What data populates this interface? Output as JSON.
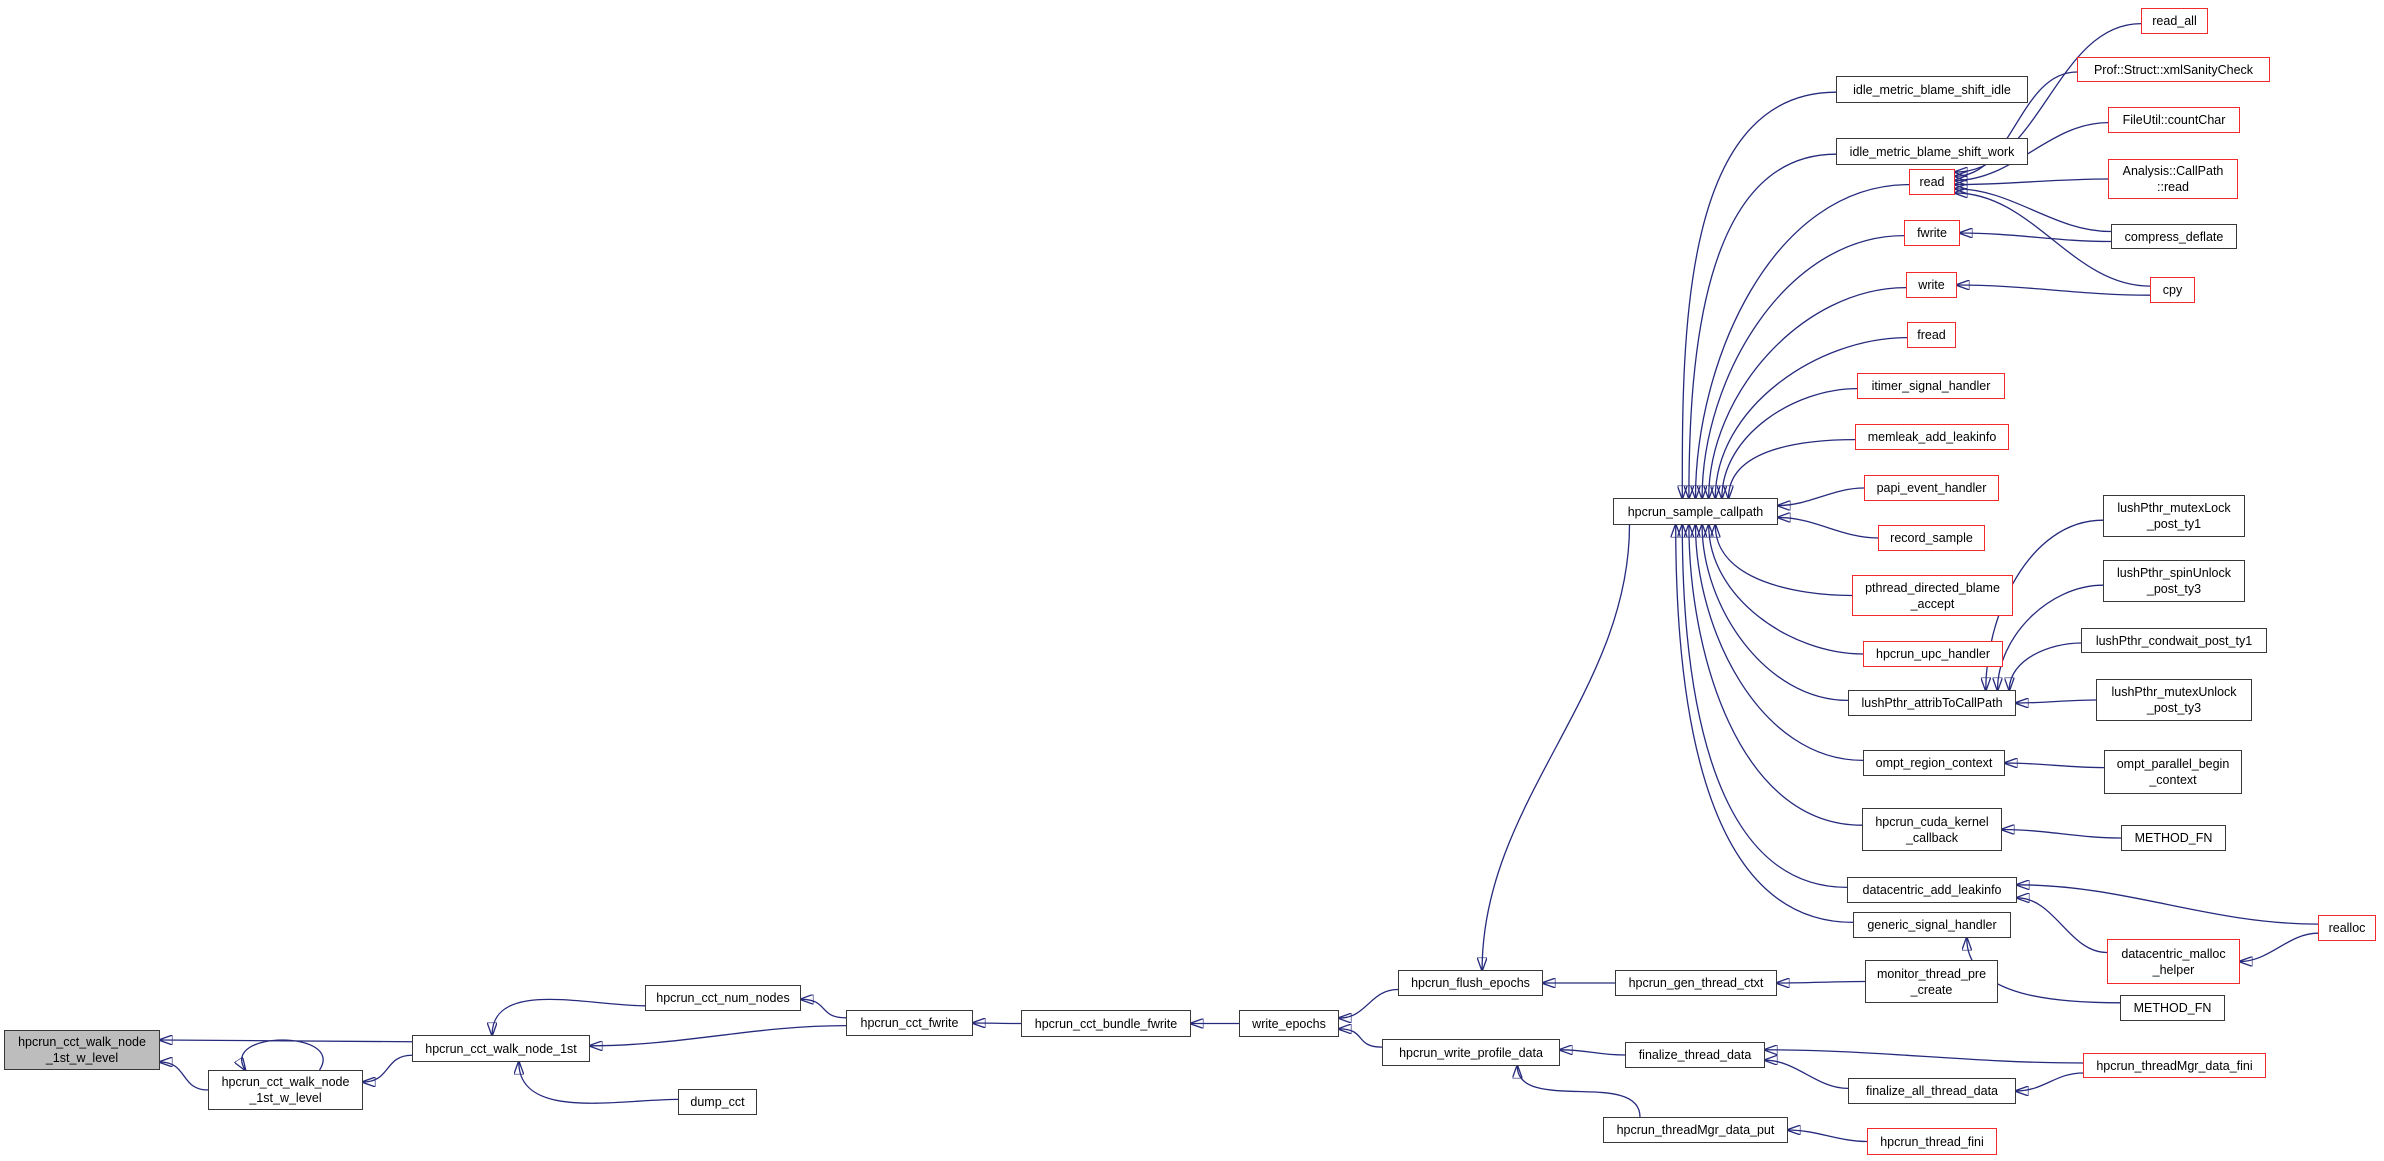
{
  "diagram": {
    "focus_function": "hpcrun_cct_walk_node_1st_w_level",
    "colors": {
      "edge": "#262a7c",
      "node_border": "#383838",
      "red_border": "#f42a2a",
      "focus_fill": "#bdbdbd",
      "background": "#ffffff"
    },
    "nodes": {
      "focus": {
        "label": "hpcrun_cct_walk_node\n_1st_w_level",
        "type": "focus"
      },
      "walk2": {
        "label": "hpcrun_cct_walk_node\n_1st_w_level",
        "type": "normal"
      },
      "walk1st": {
        "label": "hpcrun_cct_walk_node_1st",
        "type": "normal"
      },
      "numnodes": {
        "label": "hpcrun_cct_num_nodes",
        "type": "normal"
      },
      "dumpcct": {
        "label": "dump_cct",
        "type": "normal"
      },
      "cctfwrite": {
        "label": "hpcrun_cct_fwrite",
        "type": "normal"
      },
      "bundle": {
        "label": "hpcrun_cct_bundle_fwrite",
        "type": "normal"
      },
      "wepochs": {
        "label": "write_epochs",
        "type": "normal"
      },
      "flush": {
        "label": "hpcrun_flush_epochs",
        "type": "normal"
      },
      "wprofile": {
        "label": "hpcrun_write_profile_data",
        "type": "normal"
      },
      "genctxt": {
        "label": "hpcrun_gen_thread_ctxt",
        "type": "normal"
      },
      "monitor": {
        "label": "monitor_thread_pre\n_create",
        "type": "normal"
      },
      "methodfnB": {
        "label": "METHOD_FN",
        "type": "normal"
      },
      "finthread": {
        "label": "finalize_thread_data",
        "type": "normal"
      },
      "finall": {
        "label": "finalize_all_thread_data",
        "type": "normal"
      },
      "tmgrfini": {
        "label": "hpcrun_threadMgr_data_fini",
        "type": "red"
      },
      "tmgrput": {
        "label": "hpcrun_threadMgr_data_put",
        "type": "normal"
      },
      "threadfini": {
        "label": "hpcrun_thread_fini",
        "type": "red"
      },
      "callpath": {
        "label": "hpcrun_sample_callpath",
        "type": "normal"
      },
      "idleidle": {
        "label": "idle_metric_blame_shift_idle",
        "type": "normal"
      },
      "idlework": {
        "label": "idle_metric_blame_shift_work",
        "type": "normal"
      },
      "read": {
        "label": "read",
        "type": "red"
      },
      "fwrite": {
        "label": "fwrite",
        "type": "red"
      },
      "write": {
        "label": "write",
        "type": "red"
      },
      "fread": {
        "label": "fread",
        "type": "red"
      },
      "itimer": {
        "label": "itimer_signal_handler",
        "type": "red"
      },
      "memleak": {
        "label": "memleak_add_leakinfo",
        "type": "red"
      },
      "papi": {
        "label": "papi_event_handler",
        "type": "red"
      },
      "record": {
        "label": "record_sample",
        "type": "red"
      },
      "pthreadblame": {
        "label": "pthread_directed_blame\n_accept",
        "type": "red"
      },
      "upc": {
        "label": "hpcrun_upc_handler",
        "type": "red"
      },
      "lushattrib": {
        "label": "lushPthr_attribToCallPath",
        "type": "normal"
      },
      "omptregion": {
        "label": "ompt_region_context",
        "type": "normal"
      },
      "cuda": {
        "label": "hpcrun_cuda_kernel\n_callback",
        "type": "normal"
      },
      "dataadd": {
        "label": "datacentric_add_leakinfo",
        "type": "normal"
      },
      "generic": {
        "label": "generic_signal_handler",
        "type": "normal"
      },
      "readall": {
        "label": "read_all",
        "type": "red"
      },
      "xmlsanity": {
        "label": "Prof::Struct::xmlSanityCheck",
        "type": "red"
      },
      "countchar": {
        "label": "FileUtil::countChar",
        "type": "red"
      },
      "analysisread": {
        "label": "Analysis::CallPath\n::read",
        "type": "red"
      },
      "compress": {
        "label": "compress_deflate",
        "type": "normal"
      },
      "cpy": {
        "label": "cpy",
        "type": "red"
      },
      "lushty1": {
        "label": "lushPthr_mutexLock\n_post_ty1",
        "type": "normal"
      },
      "lushspin": {
        "label": "lushPthr_spinUnlock\n_post_ty3",
        "type": "normal"
      },
      "lushcond": {
        "label": "lushPthr_condwait_post_ty1",
        "type": "normal"
      },
      "lushunlock": {
        "label": "lushPthr_mutexUnlock\n_post_ty3",
        "type": "normal"
      },
      "omptparallel": {
        "label": "ompt_parallel_begin\n_context",
        "type": "normal"
      },
      "methodfnT": {
        "label": "METHOD_FN",
        "type": "normal"
      },
      "realloc": {
        "label": "realloc",
        "type": "red"
      },
      "dmhelper": {
        "label": "datacentric_malloc\n_helper",
        "type": "red"
      }
    },
    "edges": [
      {
        "f": "walk1st",
        "t": "focus",
        "sa": [
          0,
          0.25
        ],
        "ta": [
          1,
          0.25
        ]
      },
      {
        "f": "walk2",
        "t": "focus",
        "sa": [
          0,
          0.5
        ],
        "ta": [
          1,
          0.8
        ]
      },
      {
        "t": "walk2",
        "loop": true
      },
      {
        "f": "walk1st",
        "t": "walk2",
        "sa": [
          0,
          0.75
        ],
        "ta": [
          1,
          0.3
        ]
      },
      {
        "f": "numnodes",
        "t": "walk1st",
        "sa": [
          0,
          0.8
        ],
        "ta": [
          0.45,
          0
        ]
      },
      {
        "f": "cctfwrite",
        "t": "walk1st",
        "sa": [
          0,
          0.6
        ],
        "ta": [
          1,
          0.4
        ]
      },
      {
        "f": "dumpcct",
        "t": "walk1st",
        "sa": [
          0,
          0.4
        ],
        "ta": [
          0.6,
          1
        ]
      },
      {
        "f": "cctfwrite",
        "t": "numnodes",
        "sa": [
          0,
          0.3
        ],
        "ta": [
          1,
          0.55
        ]
      },
      {
        "f": "bundle",
        "t": "cctfwrite",
        "sa": [
          0,
          0.5
        ],
        "ta": [
          1,
          0.5
        ]
      },
      {
        "f": "wepochs",
        "t": "bundle",
        "sa": [
          0,
          0.5
        ],
        "ta": [
          1,
          0.5
        ]
      },
      {
        "f": "flush",
        "t": "wepochs",
        "sa": [
          0,
          0.75
        ],
        "ta": [
          1,
          0.3
        ]
      },
      {
        "f": "wprofile",
        "t": "wepochs",
        "sa": [
          0,
          0.3
        ],
        "ta": [
          1,
          0.7
        ]
      },
      {
        "f": "callpath",
        "t": "flush",
        "sa": [
          0.1,
          1
        ],
        "ta": [
          0.58,
          0
        ]
      },
      {
        "f": "genctxt",
        "t": "flush",
        "sa": [
          0,
          0.5
        ],
        "ta": [
          1,
          0.5
        ]
      },
      {
        "f": "monitor",
        "t": "genctxt",
        "sa": [
          0,
          0.5
        ],
        "ta": [
          1,
          0.5
        ]
      },
      {
        "f": "finthread",
        "t": "wprofile",
        "sa": [
          0,
          0.5
        ],
        "ta": [
          1,
          0.4
        ]
      },
      {
        "f": "tmgrput",
        "t": "wprofile",
        "sa": [
          0.2,
          0
        ],
        "ta": [
          0.76,
          1
        ]
      },
      {
        "f": "tmgrfini",
        "t": "finthread",
        "sa": [
          0,
          0.4
        ],
        "ta": [
          1,
          0.3
        ]
      },
      {
        "f": "finall",
        "t": "finthread",
        "sa": [
          0,
          0.4
        ],
        "ta": [
          1,
          0.7
        ]
      },
      {
        "f": "tmgrfini",
        "t": "finall",
        "sa": [
          0,
          0.8
        ],
        "ta": [
          1,
          0.5
        ]
      },
      {
        "f": "threadfini",
        "t": "tmgrput",
        "sa": [
          0,
          0.5
        ],
        "ta": [
          1,
          0.5
        ]
      },
      {
        "f": "idleidle",
        "t": "callpath",
        "sa": [
          0,
          0.6
        ],
        "ta": [
          0.42,
          0
        ]
      },
      {
        "f": "idlework",
        "t": "callpath",
        "sa": [
          0,
          0.6
        ],
        "ta": [
          0.46,
          0
        ]
      },
      {
        "f": "read",
        "t": "callpath",
        "sa": [
          0,
          0.6
        ],
        "ta": [
          0.5,
          0
        ]
      },
      {
        "f": "fwrite",
        "t": "callpath",
        "sa": [
          0,
          0.6
        ],
        "ta": [
          0.54,
          0
        ]
      },
      {
        "f": "write",
        "t": "callpath",
        "sa": [
          0,
          0.6
        ],
        "ta": [
          0.58,
          0
        ]
      },
      {
        "f": "fread",
        "t": "callpath",
        "sa": [
          0,
          0.6
        ],
        "ta": [
          0.62,
          0
        ]
      },
      {
        "f": "itimer",
        "t": "callpath",
        "sa": [
          0,
          0.6
        ],
        "ta": [
          0.66,
          0
        ]
      },
      {
        "f": "memleak",
        "t": "callpath",
        "sa": [
          0,
          0.6
        ],
        "ta": [
          0.7,
          0
        ]
      },
      {
        "f": "papi",
        "t": "callpath",
        "sa": [
          0,
          0.5
        ],
        "ta": [
          1,
          0.28
        ]
      },
      {
        "f": "record",
        "t": "callpath",
        "sa": [
          0,
          0.5
        ],
        "ta": [
          1,
          0.72
        ]
      },
      {
        "f": "pthreadblame",
        "t": "callpath",
        "sa": [
          0,
          0.5
        ],
        "ta": [
          0.62,
          1
        ]
      },
      {
        "f": "upc",
        "t": "callpath",
        "sa": [
          0,
          0.5
        ],
        "ta": [
          0.58,
          1
        ]
      },
      {
        "f": "lushattrib",
        "t": "callpath",
        "sa": [
          0,
          0.4
        ],
        "ta": [
          0.54,
          1
        ]
      },
      {
        "f": "omptregion",
        "t": "callpath",
        "sa": [
          0,
          0.4
        ],
        "ta": [
          0.5,
          1
        ]
      },
      {
        "f": "cuda",
        "t": "callpath",
        "sa": [
          0,
          0.4
        ],
        "ta": [
          0.46,
          1
        ]
      },
      {
        "f": "dataadd",
        "t": "callpath",
        "sa": [
          0,
          0.4
        ],
        "ta": [
          0.42,
          1
        ]
      },
      {
        "f": "generic",
        "t": "callpath",
        "sa": [
          0,
          0.4
        ],
        "ta": [
          0.38,
          1
        ]
      },
      {
        "f": "readall",
        "t": "read",
        "sa": [
          0,
          0.6
        ],
        "ta": [
          1,
          0.12
        ]
      },
      {
        "f": "xmlsanity",
        "t": "read",
        "sa": [
          0,
          0.6
        ],
        "ta": [
          1,
          0.28
        ]
      },
      {
        "f": "countchar",
        "t": "read",
        "sa": [
          0,
          0.6
        ],
        "ta": [
          1,
          0.44
        ]
      },
      {
        "f": "analysisread",
        "t": "read",
        "sa": [
          0,
          0.5
        ],
        "ta": [
          1,
          0.6
        ]
      },
      {
        "f": "compress",
        "t": "read",
        "sa": [
          0,
          0.3
        ],
        "ta": [
          1,
          0.76
        ]
      },
      {
        "f": "cpy",
        "t": "read",
        "sa": [
          0,
          0.35
        ],
        "ta": [
          1,
          0.92
        ]
      },
      {
        "f": "compress",
        "t": "fwrite",
        "sa": [
          0,
          0.7
        ],
        "ta": [
          1,
          0.5
        ]
      },
      {
        "f": "cpy",
        "t": "write",
        "sa": [
          0,
          0.7
        ],
        "ta": [
          1,
          0.5
        ]
      },
      {
        "f": "lushty1",
        "t": "lushattrib",
        "sa": [
          0,
          0.6
        ],
        "ta": [
          0.82,
          0
        ]
      },
      {
        "f": "lushspin",
        "t": "lushattrib",
        "sa": [
          0,
          0.6
        ],
        "ta": [
          0.89,
          0
        ]
      },
      {
        "f": "lushcond",
        "t": "lushattrib",
        "sa": [
          0,
          0.6
        ],
        "ta": [
          0.96,
          0
        ]
      },
      {
        "f": "lushunlock",
        "t": "lushattrib",
        "sa": [
          0,
          0.5
        ],
        "ta": [
          1,
          0.5
        ]
      },
      {
        "f": "omptparallel",
        "t": "omptregion",
        "sa": [
          0,
          0.4
        ],
        "ta": [
          1,
          0.5
        ]
      },
      {
        "f": "methodfnT",
        "t": "cuda",
        "sa": [
          0,
          0.5
        ],
        "ta": [
          1,
          0.5
        ]
      },
      {
        "f": "realloc",
        "t": "dataadd",
        "sa": [
          0,
          0.35
        ],
        "ta": [
          1,
          0.3
        ]
      },
      {
        "f": "dmhelper",
        "t": "dataadd",
        "sa": [
          0,
          0.3
        ],
        "ta": [
          1,
          0.8
        ]
      },
      {
        "f": "realloc",
        "t": "dmhelper",
        "sa": [
          0,
          0.7
        ],
        "ta": [
          1,
          0.5
        ]
      },
      {
        "f": "methodfnB",
        "t": "generic",
        "sa": [
          0,
          0.3
        ],
        "ta": [
          0.72,
          1
        ]
      }
    ]
  }
}
